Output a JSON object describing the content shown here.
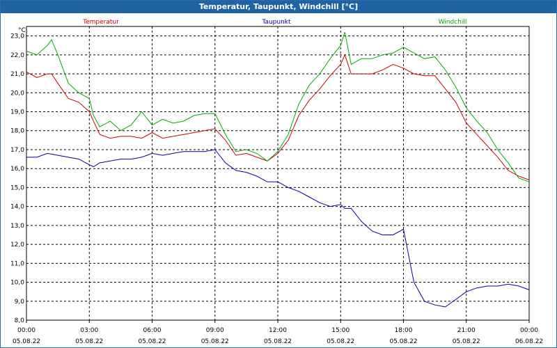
{
  "chart_data": {
    "type": "line",
    "title": "Temperatur, Taupunkt, Windchill [°C]",
    "unit": "°C",
    "ylim": [
      8.0,
      23.5
    ],
    "yticks": [
      "8,0",
      "9,0",
      "10,0",
      "11,0",
      "12,0",
      "13,0",
      "14,0",
      "15,0",
      "16,0",
      "17,0",
      "18,0",
      "19,0",
      "20,0",
      "21,0",
      "22,0",
      "23,0"
    ],
    "xticks": [
      {
        "time": "00:00",
        "date": "05.08.22"
      },
      {
        "time": "03:00",
        "date": "05.08.22"
      },
      {
        "time": "06:00",
        "date": "05.08.22"
      },
      {
        "time": "09:00",
        "date": "05.08.22"
      },
      {
        "time": "12:00",
        "date": "05.08.22"
      },
      {
        "time": "15:00",
        "date": "05.08.22"
      },
      {
        "time": "18:00",
        "date": "05.08.22"
      },
      {
        "time": "21:00",
        "date": "05.08.22"
      },
      {
        "time": "00:00",
        "date": "06.08.22"
      }
    ],
    "series": [
      {
        "name": "Temperatur",
        "color": "#cc0000",
        "x": [
          0,
          0.5,
          1,
          1.2,
          1.5,
          2,
          2.5,
          3,
          3.2,
          3.5,
          4,
          4.5,
          5,
          5.5,
          6,
          6.5,
          7,
          7.5,
          8,
          8.5,
          9,
          9.5,
          10,
          10.5,
          11,
          11.5,
          12,
          12.5,
          13,
          13.5,
          14,
          14.5,
          15,
          15.2,
          15.5,
          16,
          16.5,
          17,
          17.5,
          18,
          18.5,
          19,
          19.5,
          20,
          20.5,
          21,
          21.5,
          22,
          22.5,
          23,
          23.5,
          24
        ],
        "values": [
          21.1,
          20.8,
          21.0,
          21.0,
          20.5,
          19.7,
          19.5,
          19.0,
          18.5,
          17.8,
          17.6,
          17.7,
          17.7,
          17.6,
          17.9,
          17.6,
          17.7,
          17.8,
          17.9,
          18.0,
          18.1,
          17.5,
          16.7,
          16.8,
          16.6,
          16.4,
          16.8,
          17.5,
          18.8,
          19.6,
          20.2,
          20.9,
          21.5,
          22.0,
          21.0,
          21.0,
          21.0,
          21.2,
          21.5,
          21.3,
          21.0,
          20.9,
          20.9,
          20.2,
          19.5,
          18.4,
          17.8,
          17.2,
          16.6,
          15.9,
          15.6,
          15.4
        ]
      },
      {
        "name": "Taupunkt",
        "color": "#0000aa",
        "x": [
          0,
          0.5,
          1,
          1.5,
          2,
          2.5,
          3,
          3.2,
          3.5,
          4,
          4.5,
          5,
          5.5,
          6,
          6.5,
          7,
          7.5,
          8,
          8.5,
          9,
          9.5,
          10,
          10.5,
          11,
          11.5,
          12,
          12.5,
          13,
          13.5,
          14,
          14.5,
          15,
          15.2,
          15.5,
          16,
          16.5,
          17,
          17.5,
          18,
          18.5,
          19,
          19.5,
          20,
          20.5,
          21,
          21.5,
          22,
          22.5,
          23,
          23.5,
          24
        ],
        "values": [
          16.6,
          16.6,
          16.8,
          16.7,
          16.6,
          16.5,
          16.2,
          16.1,
          16.3,
          16.4,
          16.5,
          16.5,
          16.6,
          16.8,
          16.7,
          16.8,
          16.9,
          16.9,
          16.9,
          17.0,
          16.3,
          15.9,
          15.8,
          15.6,
          15.3,
          15.3,
          15.0,
          14.8,
          14.5,
          14.2,
          14.0,
          14.1,
          13.9,
          13.9,
          13.2,
          12.7,
          12.5,
          12.5,
          12.8,
          10.0,
          9.0,
          8.8,
          8.7,
          9.1,
          9.5,
          9.7,
          9.8,
          9.8,
          9.9,
          9.8,
          9.6
        ]
      },
      {
        "name": "Windchill",
        "color": "#00aa00",
        "x": [
          0,
          0.5,
          1,
          1.2,
          1.5,
          2,
          2.5,
          3,
          3.2,
          3.5,
          4,
          4.5,
          5,
          5.5,
          6,
          6.5,
          7,
          7.5,
          8,
          8.5,
          9,
          9.5,
          10,
          10.5,
          11,
          11.5,
          12,
          12.5,
          13,
          13.5,
          14,
          14.5,
          15,
          15.2,
          15.5,
          16,
          16.5,
          17,
          17.5,
          18,
          18.5,
          19,
          19.5,
          20,
          20.5,
          21,
          21.5,
          22,
          22.5,
          23,
          23.5,
          24
        ],
        "values": [
          22.2,
          22.0,
          22.5,
          22.8,
          22.0,
          20.5,
          20.0,
          19.7,
          18.8,
          18.2,
          18.5,
          18.0,
          18.3,
          19.0,
          18.3,
          18.6,
          18.4,
          18.5,
          18.8,
          18.9,
          18.9,
          17.8,
          16.9,
          17.0,
          16.8,
          16.4,
          16.9,
          17.8,
          19.4,
          20.4,
          21.0,
          21.8,
          22.5,
          23.2,
          21.5,
          21.8,
          21.8,
          22.0,
          22.1,
          22.4,
          22.1,
          21.8,
          21.9,
          21.2,
          20.3,
          19.2,
          18.5,
          17.9,
          17.0,
          16.3,
          15.5,
          15.3
        ]
      }
    ]
  }
}
